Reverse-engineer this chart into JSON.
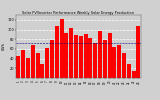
{
  "title": "Solar PV/Inverter Performance Weekly Solar Energy Production",
  "ylabel": "kWh",
  "weeks": [
    "1",
    "2",
    "3",
    "4",
    "5",
    "6",
    "7",
    "8",
    "9",
    "10",
    "11",
    "12",
    "13",
    "14",
    "15",
    "16",
    "17",
    "18",
    "19",
    "20",
    "21",
    "22",
    "23",
    "24",
    "25",
    "26"
  ],
  "values": [
    45,
    58,
    42,
    68,
    52,
    28,
    62,
    78,
    108,
    122,
    93,
    103,
    88,
    86,
    90,
    83,
    73,
    98,
    78,
    93,
    63,
    68,
    52,
    28,
    14,
    108
  ],
  "bar_color": "#ff0000",
  "avg_color": "#000080",
  "background_color": "#d0d0d0",
  "grid_color": "#ffffff",
  "plot_bg": "#d0d0d0",
  "ylim": [
    0,
    130
  ],
  "yticks": [
    20,
    40,
    60,
    80,
    100,
    120
  ],
  "avg_value": 72
}
